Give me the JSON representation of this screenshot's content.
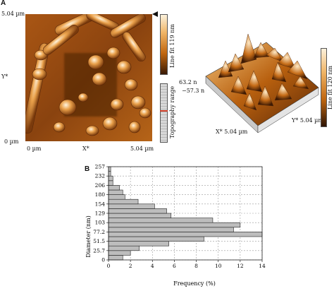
{
  "panel_a": {
    "letter": "A",
    "afm2d": {
      "y_top": "5.04 µm",
      "y_bottom": "0 µm",
      "y_axis": "Y*",
      "x_left": "0 µm",
      "x_axis": "X*",
      "x_right": "5.04 µm"
    },
    "colorbar_main_label": "Line fit 119 nm",
    "colorbar_range_label": "Topography range",
    "afm3d": {
      "z_top": "63.2 n",
      "z_bottom": "−57.3 n",
      "x_label": "X* 5.04 µm",
      "y_label": "Y* 5.04 µm",
      "colorbar_label": "Line fit 120 nm"
    },
    "colors": {
      "dark": "#3a1a05",
      "mid": "#c0660f",
      "light": "#f7e6c8"
    }
  },
  "panel_b": {
    "letter": "B"
  },
  "chart_data": {
    "type": "bar",
    "orientation": "horizontal",
    "title": "",
    "xlabel": "Frequency (%)",
    "ylabel": "Diameter (nm)",
    "xlim": [
      0,
      14
    ],
    "x_ticks": [
      "0",
      "2",
      "4",
      "6",
      "8",
      "10",
      "12",
      "14"
    ],
    "y_ticks": [
      "0",
      "25.7",
      "51.5",
      "77.2",
      "103",
      "129",
      "154",
      "180",
      "206",
      "232",
      "257"
    ],
    "ylim": [
      0,
      257
    ],
    "categories": [
      "0–12.9",
      "12.9–25.7",
      "25.7–38.6",
      "38.6–51.5",
      "51.5–64.4",
      "64.4–77.2",
      "77.2–90.1",
      "90.1–103",
      "103–116",
      "116–129",
      "129–141",
      "141–154",
      "154–167",
      "167–180",
      "180–193",
      "193–206",
      "206–219",
      "219–232",
      "232–244",
      "244–257"
    ],
    "values": [
      1.3,
      2.0,
      2.8,
      5.5,
      8.7,
      14.0,
      11.4,
      12.0,
      9.5,
      5.7,
      5.3,
      4.2,
      2.7,
      1.5,
      1.3,
      1.0,
      0.4,
      0.4,
      0.2,
      0.2
    ],
    "grid": true
  }
}
